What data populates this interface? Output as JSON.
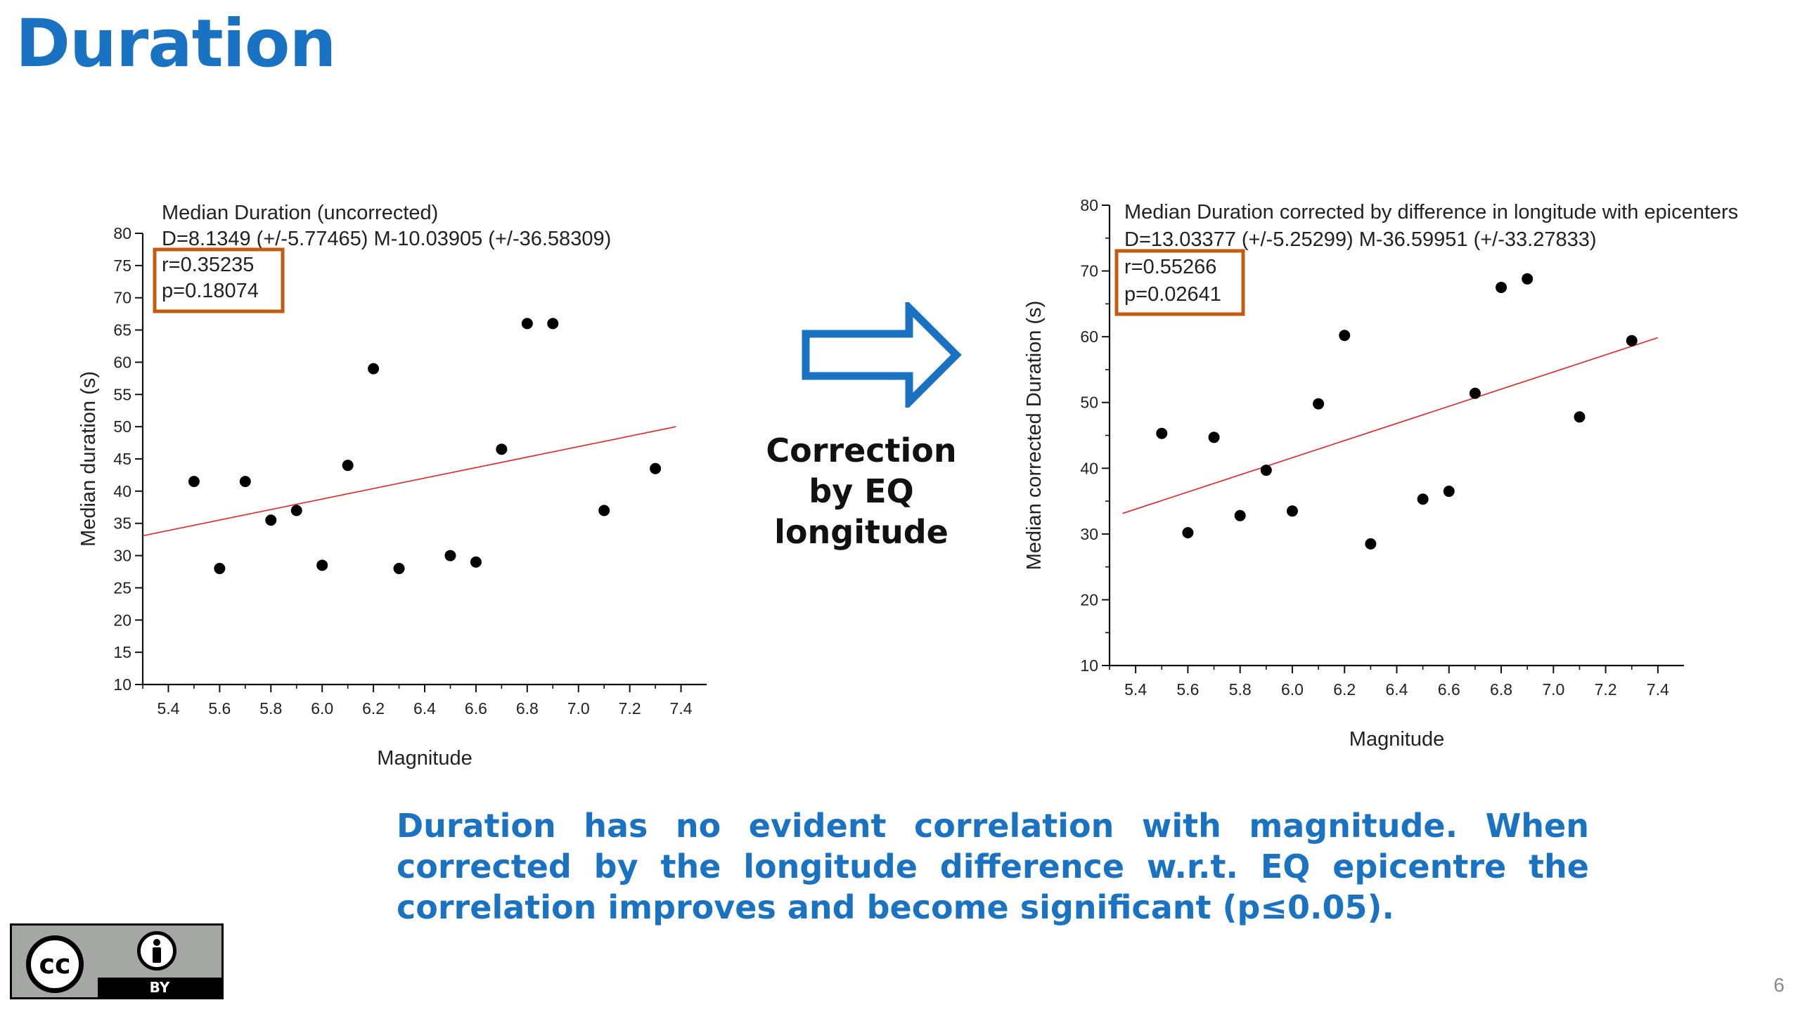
{
  "slide": {
    "title": "Duration",
    "middle_text": [
      "Correction",
      "by EQ",
      "longitude"
    ],
    "conclusion": "Duration has no evident correlation with magnitude. When corrected by the longitude difference w.r.t. EQ epicentre the correlation improves and become significant (p≤0.05).",
    "page_number": "6",
    "license_badge": {
      "cc_label": "cc",
      "by_label": "BY",
      "icon": "creative-commons-by-icon"
    },
    "colors": {
      "title": "#1a73c2",
      "stats_box": "#c55a11",
      "fit_line": "#ee2222",
      "points": "#000000"
    }
  },
  "chart_data": [
    {
      "type": "scatter",
      "title": "Median Duration (uncorrected)",
      "equation": "D=8.1349 (+/-5.77465) M-10.03905 (+/-36.58309)",
      "r_label": "r=0.35235",
      "p_label": "p=0.18074",
      "xlabel": "Magnitude",
      "ylabel": "Median duration (s)",
      "xlim": [
        5.3,
        7.5
      ],
      "ylim": [
        10,
        80
      ],
      "xticks": [
        5.4,
        5.6,
        5.8,
        6.0,
        6.2,
        6.4,
        6.6,
        6.8,
        7.0,
        7.2,
        7.4
      ],
      "xtick_labels": [
        "5.4",
        "5.6",
        "5.8",
        "6.0",
        "6.2",
        "6.4",
        "6.6",
        "6.8",
        "7.0",
        "7.2",
        "7.4"
      ],
      "yticks": [
        10,
        15,
        20,
        25,
        30,
        35,
        40,
        45,
        50,
        55,
        60,
        65,
        70,
        75,
        80
      ],
      "ytick_labels": [
        "10",
        "15",
        "20",
        "25",
        "30",
        "35",
        "40",
        "45",
        "50",
        "55",
        "60",
        "65",
        "70",
        "75",
        "80"
      ],
      "fit": {
        "slope": 8.1349,
        "intercept": -10.03905,
        "x_range": [
          5.3,
          7.38
        ]
      },
      "points": [
        {
          "x": 5.5,
          "y": 41.5
        },
        {
          "x": 5.6,
          "y": 28
        },
        {
          "x": 5.7,
          "y": 41.5
        },
        {
          "x": 5.8,
          "y": 35.5
        },
        {
          "x": 5.9,
          "y": 37
        },
        {
          "x": 6.0,
          "y": 28.5
        },
        {
          "x": 6.1,
          "y": 44
        },
        {
          "x": 6.2,
          "y": 59
        },
        {
          "x": 6.3,
          "y": 28
        },
        {
          "x": 6.5,
          "y": 30
        },
        {
          "x": 6.6,
          "y": 29
        },
        {
          "x": 6.7,
          "y": 46.5
        },
        {
          "x": 6.8,
          "y": 66
        },
        {
          "x": 6.9,
          "y": 66
        },
        {
          "x": 7.1,
          "y": 37
        },
        {
          "x": 7.3,
          "y": 43.5
        }
      ],
      "grid": false
    },
    {
      "type": "scatter",
      "title": "Median Duration corrected by difference in longitude with epicenters",
      "equation": "D=13.03377 (+/-5.25299) M-36.59951 (+/-33.27833)",
      "r_label": "r=0.55266",
      "p_label": "p=0.02641",
      "xlabel": "Magnitude",
      "ylabel": "Median corrected  Duration (s)",
      "xlim": [
        5.3,
        7.5
      ],
      "ylim": [
        10,
        80
      ],
      "xticks": [
        5.4,
        5.6,
        5.8,
        6.0,
        6.2,
        6.4,
        6.6,
        6.8,
        7.0,
        7.2,
        7.4
      ],
      "xtick_labels": [
        "5.4",
        "5.6",
        "5.8",
        "6.0",
        "6.2",
        "6.4",
        "6.6",
        "6.8",
        "7.0",
        "7.2",
        "7.4"
      ],
      "yticks": [
        10,
        20,
        30,
        40,
        50,
        60,
        70,
        80
      ],
      "ytick_labels": [
        "10",
        "20",
        "30",
        "40",
        "50",
        "60",
        "70",
        "80"
      ],
      "fit": {
        "slope": 13.03377,
        "intercept": -36.59951,
        "x_range": [
          5.35,
          7.4
        ]
      },
      "points": [
        {
          "x": 5.5,
          "y": 45.3
        },
        {
          "x": 5.6,
          "y": 30.2
        },
        {
          "x": 5.7,
          "y": 44.7
        },
        {
          "x": 5.8,
          "y": 32.8
        },
        {
          "x": 5.9,
          "y": 39.7
        },
        {
          "x": 6.0,
          "y": 33.5
        },
        {
          "x": 6.1,
          "y": 49.8
        },
        {
          "x": 6.2,
          "y": 60.2
        },
        {
          "x": 6.3,
          "y": 28.5
        },
        {
          "x": 6.5,
          "y": 35.3
        },
        {
          "x": 6.6,
          "y": 36.5
        },
        {
          "x": 6.7,
          "y": 51.4
        },
        {
          "x": 6.8,
          "y": 67.5
        },
        {
          "x": 6.9,
          "y": 68.8
        },
        {
          "x": 7.1,
          "y": 47.8
        },
        {
          "x": 7.3,
          "y": 59.4
        }
      ],
      "grid": false
    }
  ]
}
